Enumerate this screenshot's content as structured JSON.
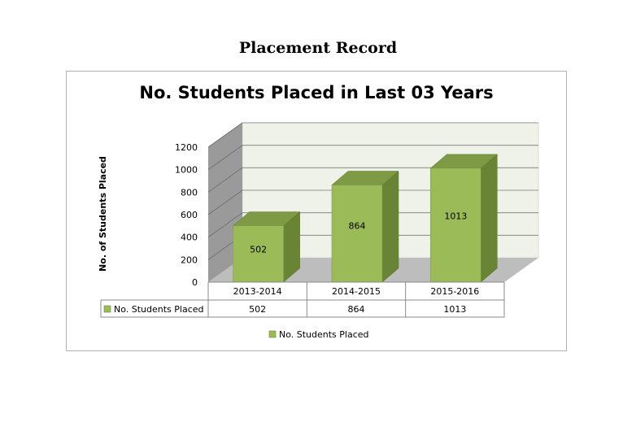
{
  "page_title": "Placement Record",
  "chart_data": {
    "type": "bar",
    "title": "No. Students Placed in Last 03 Years",
    "ylabel": "No. of Students Placed",
    "xlabel": "",
    "categories": [
      "2013-2014",
      "2014-2015",
      "2015-2016"
    ],
    "series": [
      {
        "name": "No. Students Placed",
        "values": [
          502,
          864,
          1013
        ]
      }
    ],
    "ylim": [
      0,
      1200
    ],
    "yticks": [
      0,
      200,
      400,
      600,
      800,
      1000,
      1200
    ],
    "data_labels": [
      "502",
      "864",
      "1013"
    ],
    "data_table": {
      "row_label": "No. Students Placed",
      "cells": [
        "502",
        "864",
        "1013"
      ]
    },
    "legend": {
      "label": "No. Students Placed",
      "placement": "bottom"
    },
    "grid": true,
    "style": "3d-column",
    "colors": {
      "bar_front": "#9BBB59",
      "bar_top": "#7E9A44",
      "bar_side": "#6A8436",
      "wall": "#EEF2E8",
      "side_wall": "#9A9A9A",
      "floor": "#BDBDBD"
    }
  }
}
